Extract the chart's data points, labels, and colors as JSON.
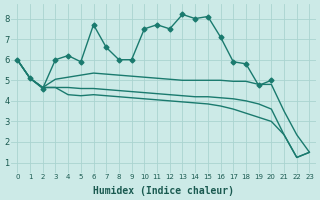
{
  "title": "",
  "xlabel": "Humidex (Indice chaleur)",
  "bg_color": "#cceae7",
  "grid_color": "#aad4d0",
  "line_color": "#1a7a6e",
  "xlim": [
    -0.5,
    23.5
  ],
  "ylim": [
    0.5,
    8.7
  ],
  "yticks": [
    1,
    2,
    3,
    4,
    5,
    6,
    7,
    8
  ],
  "xticks": [
    0,
    1,
    2,
    3,
    4,
    5,
    6,
    7,
    8,
    9,
    10,
    11,
    12,
    13,
    14,
    15,
    16,
    17,
    18,
    19,
    20,
    21,
    22,
    23
  ],
  "series": [
    {
      "x": [
        0,
        1,
        2,
        3,
        4,
        5,
        6,
        7,
        8,
        9,
        10,
        11,
        12,
        13,
        14,
        15,
        16,
        17,
        18,
        19,
        20
      ],
      "y": [
        6.0,
        5.1,
        4.6,
        6.0,
        6.2,
        5.9,
        7.7,
        6.6,
        6.0,
        6.0,
        7.5,
        7.7,
        7.5,
        8.2,
        8.0,
        8.1,
        7.1,
        5.9,
        5.8,
        4.75,
        5.0
      ],
      "marker": true,
      "markersize": 2.5,
      "linewidth": 1.0
    },
    {
      "x": [
        0,
        1,
        2,
        3,
        4,
        5,
        6,
        7,
        8,
        9,
        10,
        11,
        12,
        13,
        14,
        15,
        16,
        17,
        18,
        19,
        20,
        21,
        22,
        23
      ],
      "y": [
        6.0,
        5.1,
        4.65,
        5.05,
        5.15,
        5.25,
        5.35,
        5.3,
        5.25,
        5.2,
        5.15,
        5.1,
        5.05,
        5.0,
        5.0,
        5.0,
        5.0,
        4.95,
        4.95,
        4.8,
        4.8,
        3.5,
        2.35,
        1.5
      ],
      "marker": false,
      "markersize": 0,
      "linewidth": 1.0
    },
    {
      "x": [
        0,
        1,
        2,
        3,
        4,
        5,
        6,
        7,
        8,
        9,
        10,
        11,
        12,
        13,
        14,
        15,
        16,
        17,
        18,
        19,
        20,
        21,
        22,
        23
      ],
      "y": [
        6.0,
        5.1,
        4.65,
        4.65,
        4.65,
        4.6,
        4.6,
        4.55,
        4.5,
        4.45,
        4.4,
        4.35,
        4.3,
        4.25,
        4.2,
        4.2,
        4.15,
        4.1,
        4.0,
        3.85,
        3.6,
        2.35,
        1.25,
        1.5
      ],
      "marker": false,
      "markersize": 0,
      "linewidth": 1.0
    },
    {
      "x": [
        0,
        1,
        2,
        3,
        4,
        5,
        6,
        7,
        8,
        9,
        10,
        11,
        12,
        13,
        14,
        15,
        16,
        17,
        18,
        19,
        20,
        21,
        22,
        23
      ],
      "y": [
        6.0,
        5.1,
        4.65,
        4.65,
        4.3,
        4.25,
        4.3,
        4.25,
        4.2,
        4.15,
        4.1,
        4.05,
        4.0,
        3.95,
        3.9,
        3.85,
        3.75,
        3.6,
        3.4,
        3.2,
        3.0,
        2.35,
        1.25,
        1.5
      ],
      "marker": false,
      "markersize": 0,
      "linewidth": 1.0
    }
  ]
}
